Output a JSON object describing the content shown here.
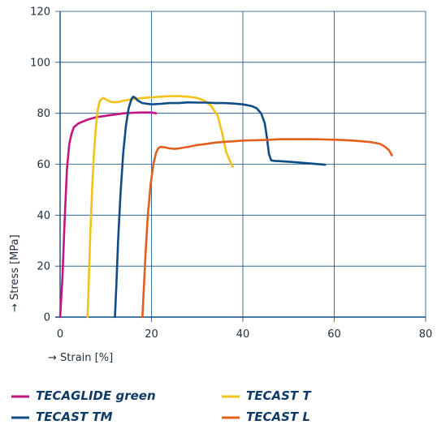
{
  "chart_data": {
    "type": "line",
    "xlabel": "→ Strain [%]",
    "ylabel": "→ Stress [MPa]",
    "xlim": [
      0,
      80
    ],
    "ylim": [
      0,
      120
    ],
    "xticks": [
      0,
      20,
      40,
      60,
      80
    ],
    "yticks": [
      0,
      20,
      40,
      60,
      80,
      100,
      120
    ],
    "grid": true,
    "legend_position": "bottom",
    "series": [
      {
        "name": "TECAGLIDE green",
        "color": "#c2167e",
        "points": [
          [
            0,
            0
          ],
          [
            0.5,
            15
          ],
          [
            1,
            38
          ],
          [
            1.5,
            58
          ],
          [
            2,
            68
          ],
          [
            2.5,
            72
          ],
          [
            3,
            74.5
          ],
          [
            4,
            76
          ],
          [
            6,
            77.5
          ],
          [
            8,
            78.5
          ],
          [
            10,
            79
          ],
          [
            12,
            79.5
          ],
          [
            14,
            80
          ],
          [
            16,
            80.2
          ],
          [
            18,
            80.3
          ],
          [
            20,
            80.3
          ],
          [
            21,
            80
          ]
        ]
      },
      {
        "name": "TECAST T",
        "color": "#f2c21b",
        "points": [
          [
            6,
            0
          ],
          [
            6.3,
            15
          ],
          [
            6.6,
            32
          ],
          [
            7,
            50
          ],
          [
            7.4,
            64
          ],
          [
            7.8,
            74
          ],
          [
            8.2,
            81
          ],
          [
            8.6,
            84.5
          ],
          [
            9,
            85.5
          ],
          [
            9.5,
            86
          ],
          [
            10,
            85.5
          ],
          [
            11,
            84.5
          ],
          [
            12,
            84.3
          ],
          [
            13,
            84.5
          ],
          [
            14,
            85
          ],
          [
            16,
            85.5
          ],
          [
            18,
            86
          ],
          [
            20,
            86.2
          ],
          [
            22,
            86.5
          ],
          [
            24,
            86.7
          ],
          [
            26,
            86.7
          ],
          [
            28,
            86.5
          ],
          [
            30,
            86
          ],
          [
            31.5,
            85
          ],
          [
            33,
            83
          ],
          [
            34.5,
            79
          ],
          [
            35.5,
            72
          ],
          [
            36.3,
            65
          ],
          [
            37,
            62
          ],
          [
            37.5,
            60
          ],
          [
            37.8,
            59
          ]
        ]
      },
      {
        "name": "TECAST TM",
        "color": "#0f4c85",
        "points": [
          [
            12,
            0
          ],
          [
            12.3,
            12
          ],
          [
            12.7,
            30
          ],
          [
            13.2,
            48
          ],
          [
            13.8,
            64
          ],
          [
            14.4,
            75
          ],
          [
            15,
            82
          ],
          [
            15.6,
            85.5
          ],
          [
            16,
            86.5
          ],
          [
            16.5,
            86
          ],
          [
            17,
            85
          ],
          [
            18,
            84
          ],
          [
            20,
            83.5
          ],
          [
            22,
            83.7
          ],
          [
            24,
            84
          ],
          [
            26,
            84
          ],
          [
            28,
            84.3
          ],
          [
            30,
            84.2
          ],
          [
            32,
            84.2
          ],
          [
            34,
            84
          ],
          [
            36,
            84
          ],
          [
            38,
            83.8
          ],
          [
            40,
            83.5
          ],
          [
            42,
            82.8
          ],
          [
            43,
            82
          ],
          [
            44,
            80
          ],
          [
            44.8,
            76
          ],
          [
            45.3,
            70
          ],
          [
            45.7,
            64
          ],
          [
            46.2,
            61.5
          ],
          [
            47,
            61.3
          ],
          [
            48,
            61.2
          ],
          [
            50,
            61
          ],
          [
            52,
            60.7
          ],
          [
            54,
            60.4
          ],
          [
            56,
            60.1
          ],
          [
            58,
            59.8
          ]
        ]
      },
      {
        "name": "TECAST L",
        "color": "#e2601c",
        "points": [
          [
            18,
            0
          ],
          [
            18.3,
            10
          ],
          [
            18.7,
            25
          ],
          [
            19.2,
            40
          ],
          [
            19.8,
            52
          ],
          [
            20.4,
            60
          ],
          [
            21,
            64.5
          ],
          [
            21.5,
            66.3
          ],
          [
            22,
            66.8
          ],
          [
            23,
            66.6
          ],
          [
            24,
            66.2
          ],
          [
            25,
            66
          ],
          [
            26,
            66.2
          ],
          [
            28,
            66.8
          ],
          [
            30,
            67.5
          ],
          [
            32,
            68
          ],
          [
            34,
            68.5
          ],
          [
            36,
            68.8
          ],
          [
            38,
            69
          ],
          [
            40,
            69.3
          ],
          [
            42,
            69.4
          ],
          [
            44,
            69.5
          ],
          [
            46,
            69.6
          ],
          [
            48,
            69.8
          ],
          [
            50,
            69.8
          ],
          [
            52,
            69.8
          ],
          [
            54,
            69.8
          ],
          [
            56,
            69.8
          ],
          [
            58,
            69.7
          ],
          [
            60,
            69.6
          ],
          [
            62,
            69.5
          ],
          [
            64,
            69.3
          ],
          [
            66,
            69
          ],
          [
            68,
            68.7
          ],
          [
            70,
            68
          ],
          [
            71,
            67
          ],
          [
            72,
            65.5
          ],
          [
            72.6,
            63.5
          ]
        ]
      }
    ]
  }
}
